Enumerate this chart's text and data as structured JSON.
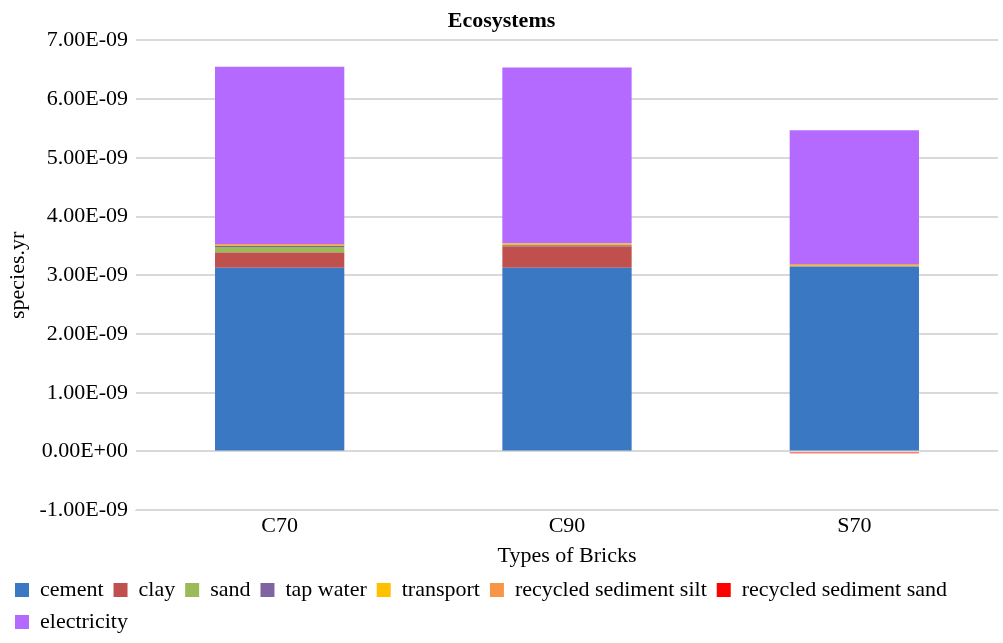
{
  "chart_data": {
    "type": "bar",
    "stacked": true,
    "title": "Ecosystems",
    "xlabel": "Types of Bricks",
    "ylabel": "species.yr",
    "categories": [
      "C70",
      "C90",
      "S70"
    ],
    "series": [
      {
        "name": "cement",
        "color": "#3a78c4",
        "values": [
          3.13e-09,
          3.13e-09,
          3.15e-09
        ]
      },
      {
        "name": "clay",
        "color": "#c0504d",
        "values": [
          2.6e-10,
          3.6e-10,
          0
        ]
      },
      {
        "name": "sand",
        "color": "#9bbb59",
        "values": [
          9e-11,
          0,
          0
        ]
      },
      {
        "name": "tap water",
        "color": "#8064a2",
        "values": [
          2e-11,
          2e-11,
          0
        ]
      },
      {
        "name": "transport",
        "color": "#ffc000",
        "values": [
          2e-11,
          3e-11,
          3e-11
        ]
      },
      {
        "name": "recycled sediment silt",
        "color": "#f79646",
        "values": [
          0,
          0,
          0
        ]
      },
      {
        "name": "recycled sediment sand",
        "color": "#ff0000",
        "values": [
          0,
          0,
          -3e-11
        ]
      },
      {
        "name": "electricity",
        "color": "#b469ff",
        "values": [
          3.03e-09,
          3e-09,
          2.29e-09
        ]
      }
    ],
    "ylim": [
      -1e-09,
      7e-09
    ],
    "yticks": [
      {
        "value": -1e-09,
        "label": "-1.00E-09"
      },
      {
        "value": 0,
        "label": "0.00E+00"
      },
      {
        "value": 1e-09,
        "label": "1.00E-09"
      },
      {
        "value": 2e-09,
        "label": "2.00E-09"
      },
      {
        "value": 3e-09,
        "label": "3.00E-09"
      },
      {
        "value": 4e-09,
        "label": "4.00E-09"
      },
      {
        "value": 5e-09,
        "label": "5.00E-09"
      },
      {
        "value": 6e-09,
        "label": "6.00E-09"
      },
      {
        "value": 7e-09,
        "label": "7.00E-09"
      }
    ],
    "grid": "y",
    "legend": "bottom"
  }
}
